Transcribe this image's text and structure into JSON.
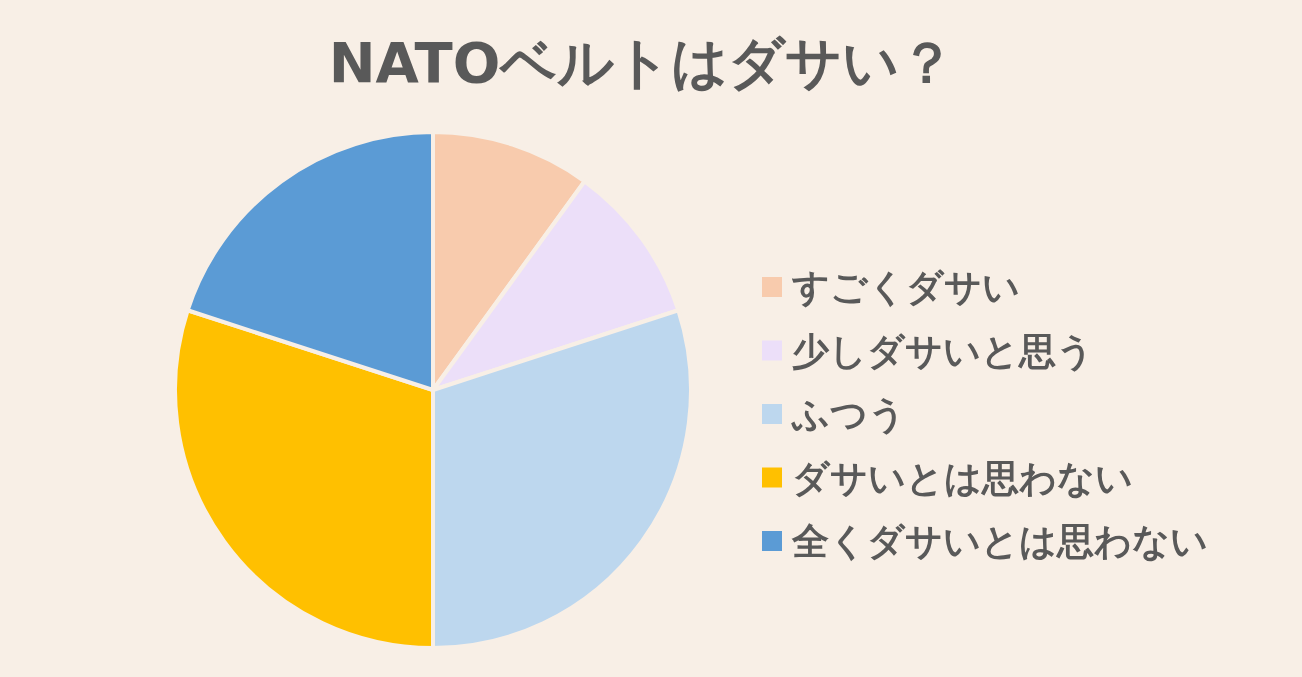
{
  "chart_data": {
    "type": "pie",
    "title": "NATOベルトはダサい？",
    "categories": [
      "すごくダサい",
      "少しダサいと思う",
      "ふつう",
      "ダサいとは思わない",
      "全くダサいとは思わない"
    ],
    "values": [
      10,
      10,
      30,
      30,
      20
    ],
    "colors": [
      "#f8cbad",
      "#ecdff9",
      "#bdd7ee",
      "#ffc000",
      "#5b9bd5"
    ],
    "legend": "right"
  }
}
